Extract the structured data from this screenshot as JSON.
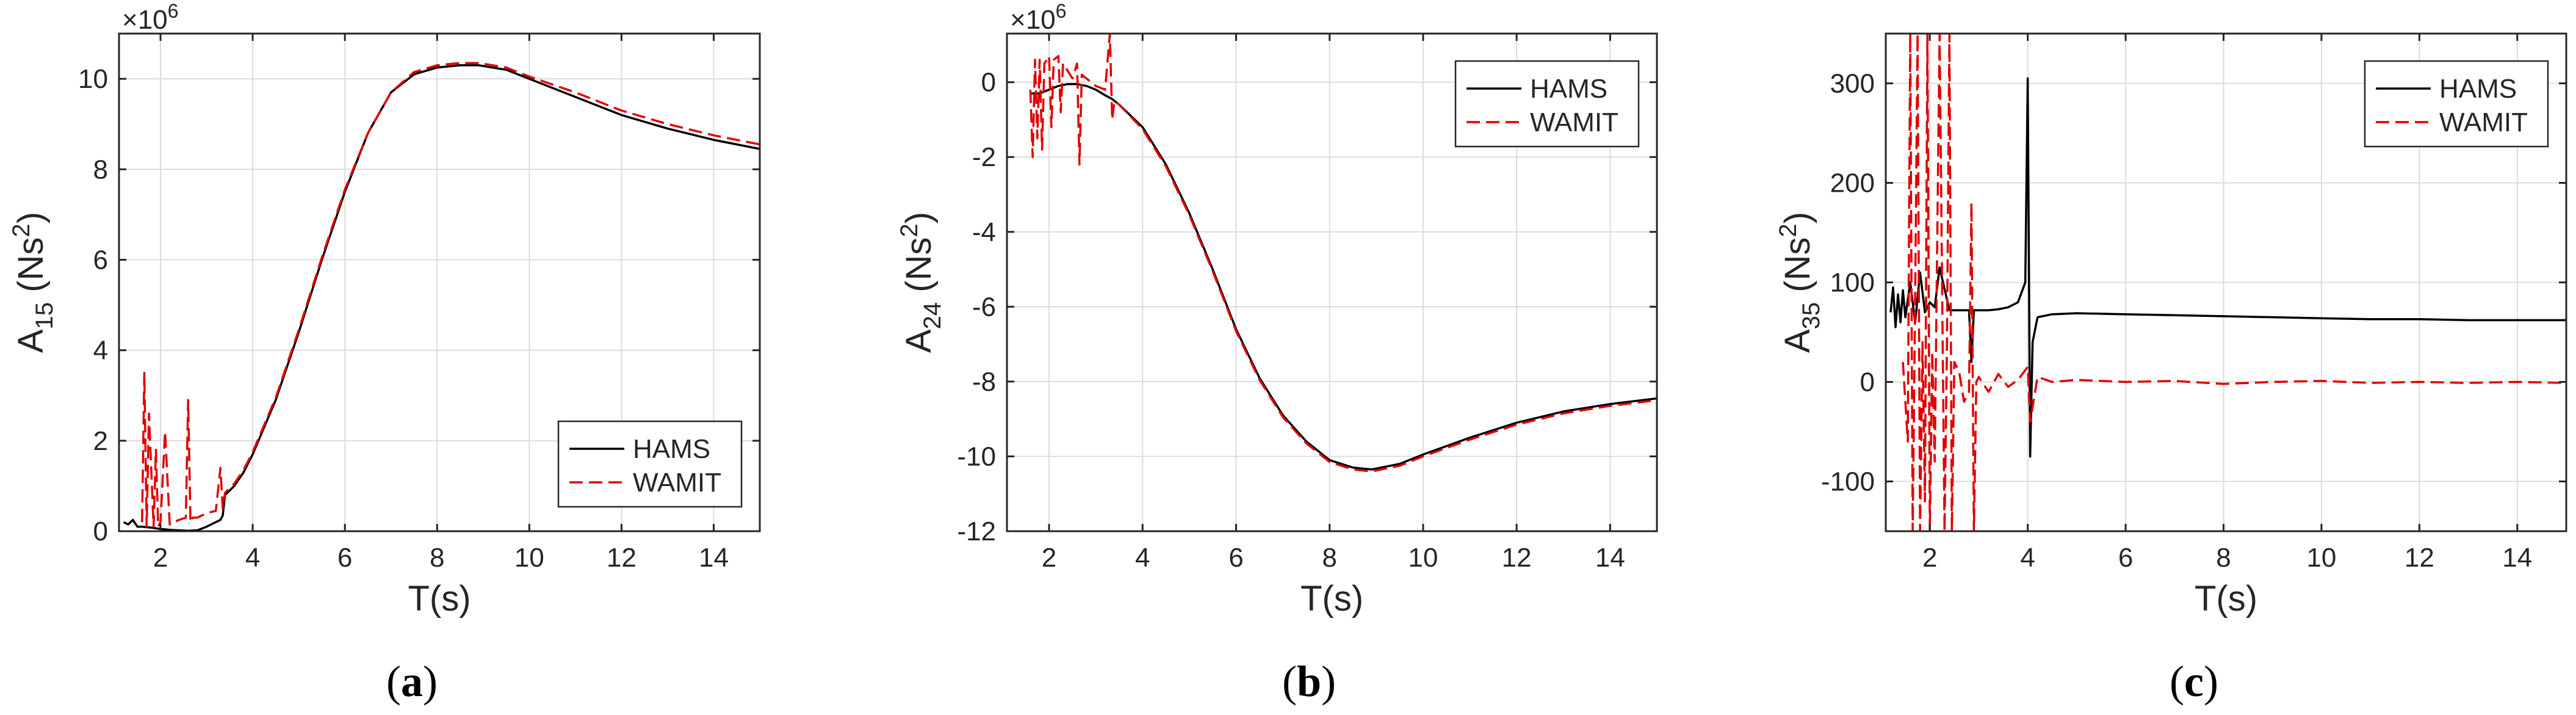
{
  "chart_data": [
    {
      "type": "line",
      "caption": "(a)",
      "ylabel_main": "A",
      "ylabel_sub": "15",
      "ylabel_unit": " (Ns",
      "ylabel_sup": "2",
      "ylabel_close": ")",
      "xlabel": "T(s)",
      "exponent_base": "×10",
      "exponent_power": "6",
      "xlim": [
        1.1,
        15
      ],
      "ylim": [
        0,
        11
      ],
      "xticks": [
        2,
        4,
        6,
        8,
        10,
        12,
        14
      ],
      "yticks": [
        0,
        2,
        4,
        6,
        8,
        10
      ],
      "xtick_labels": [
        "2",
        "4",
        "6",
        "8",
        "10",
        "12",
        "14"
      ],
      "ytick_labels": [
        "0",
        "2",
        "4",
        "6",
        "8",
        "10"
      ],
      "grid": true,
      "legend_position": "bottom-right",
      "series": [
        {
          "name": "HAMS",
          "color": "#000000",
          "dash": "solid",
          "x": [
            1.2,
            1.3,
            1.4,
            1.5,
            1.6,
            1.8,
            2.0,
            2.2,
            2.4,
            2.6,
            2.8,
            3.0,
            3.2,
            3.3,
            3.35,
            3.4,
            3.6,
            3.8,
            4.0,
            4.5,
            5.0,
            5.5,
            6.0,
            6.5,
            7.0,
            7.5,
            8.0,
            8.5,
            8.9,
            9.5,
            10.0,
            11.0,
            12.0,
            13.0,
            14.0,
            15.0
          ],
          "y": [
            0.2,
            0.15,
            0.25,
            0.1,
            0.1,
            0.08,
            0.05,
            0.03,
            0.02,
            0.01,
            0.02,
            0.1,
            0.2,
            0.25,
            0.35,
            0.8,
            1.0,
            1.3,
            1.7,
            2.9,
            4.4,
            6.0,
            7.5,
            8.8,
            9.7,
            10.1,
            10.25,
            10.3,
            10.3,
            10.2,
            10.0,
            9.6,
            9.2,
            8.9,
            8.65,
            8.45
          ]
        },
        {
          "name": "WAMIT",
          "color": "#e00000",
          "dash": "dashed",
          "x": [
            1.6,
            1.65,
            1.7,
            1.75,
            1.85,
            1.9,
            1.95,
            2.0,
            2.1,
            2.2,
            2.25,
            2.3,
            2.4,
            2.55,
            2.6,
            2.65,
            2.7,
            2.8,
            3.0,
            3.2,
            3.3,
            3.35,
            3.4,
            3.6,
            3.8,
            4.0,
            4.5,
            5.0,
            5.5,
            6.0,
            6.5,
            7.0,
            7.5,
            8.0,
            8.5,
            8.9,
            9.5,
            10.0,
            11.0,
            12.0,
            13.0,
            14.0,
            15.0
          ],
          "y": [
            0.2,
            3.5,
            0.1,
            2.6,
            0.1,
            1.8,
            0.1,
            0.2,
            2.2,
            0.15,
            0.2,
            0.2,
            0.25,
            0.3,
            2.9,
            0.2,
            0.3,
            0.3,
            0.4,
            0.45,
            1.4,
            0.5,
            0.85,
            1.05,
            1.35,
            1.75,
            2.95,
            4.45,
            6.05,
            7.55,
            8.8,
            9.7,
            10.15,
            10.3,
            10.35,
            10.35,
            10.25,
            10.05,
            9.7,
            9.3,
            9.0,
            8.75,
            8.55
          ]
        }
      ]
    },
    {
      "type": "line",
      "caption": "(b)",
      "ylabel_main": "A",
      "ylabel_sub": "24",
      "ylabel_unit": " (Ns",
      "ylabel_sup": "2",
      "ylabel_close": ")",
      "xlabel": "T(s)",
      "exponent_base": "×10",
      "exponent_power": "6",
      "xlim": [
        1.1,
        15
      ],
      "ylim": [
        -12,
        1.3
      ],
      "xticks": [
        2,
        4,
        6,
        8,
        10,
        12,
        14
      ],
      "yticks": [
        -12,
        -10,
        -8,
        -6,
        -4,
        -2,
        0
      ],
      "xtick_labels": [
        "2",
        "4",
        "6",
        "8",
        "10",
        "12",
        "14"
      ],
      "ytick_labels": [
        "-12",
        "-10",
        "-8",
        "-6",
        "-4",
        "-2",
        "0"
      ],
      "grid": true,
      "legend_position": "top-right",
      "series": [
        {
          "name": "HAMS",
          "color": "#000000",
          "dash": "solid",
          "x": [
            1.6,
            1.8,
            2.0,
            2.2,
            2.4,
            2.6,
            2.8,
            3.0,
            3.2,
            3.35,
            3.5,
            4.0,
            4.5,
            5.0,
            5.5,
            6.0,
            6.5,
            7.0,
            7.5,
            8.0,
            8.5,
            8.9,
            9.5,
            10.0,
            11.0,
            12.0,
            13.0,
            14.0,
            15.0
          ],
          "y": [
            -0.3,
            -0.3,
            -0.2,
            -0.1,
            -0.05,
            -0.05,
            -0.1,
            -0.2,
            -0.35,
            -0.45,
            -0.6,
            -1.2,
            -2.2,
            -3.5,
            -5.0,
            -6.6,
            -7.9,
            -8.9,
            -9.6,
            -10.1,
            -10.3,
            -10.35,
            -10.2,
            -9.95,
            -9.5,
            -9.1,
            -8.8,
            -8.6,
            -8.45
          ]
        },
        {
          "name": "WAMIT",
          "color": "#e00000",
          "dash": "dashed",
          "x": [
            1.6,
            1.65,
            1.7,
            1.75,
            1.8,
            1.85,
            1.9,
            2.0,
            2.05,
            2.1,
            2.2,
            2.25,
            2.3,
            2.5,
            2.6,
            2.65,
            2.7,
            3.0,
            3.2,
            3.3,
            3.35,
            3.4,
            3.5,
            4.0,
            4.5,
            5.0,
            5.5,
            6.0,
            6.5,
            7.0,
            7.5,
            8.0,
            8.5,
            8.9,
            9.5,
            10.0,
            11.0,
            12.0,
            13.0,
            14.0,
            15.0
          ],
          "y": [
            -0.2,
            -2.0,
            0.6,
            -1.5,
            0.6,
            -1.8,
            0.5,
            0.7,
            -1.2,
            0.6,
            0.7,
            -0.8,
            0.5,
            0.1,
            0.5,
            -2.2,
            0.2,
            -0.1,
            -0.2,
            1.3,
            -1.0,
            -0.5,
            -0.6,
            -1.25,
            -2.25,
            -3.55,
            -5.05,
            -6.65,
            -7.95,
            -8.95,
            -9.65,
            -10.15,
            -10.35,
            -10.4,
            -10.25,
            -10.0,
            -9.55,
            -9.15,
            -8.85,
            -8.65,
            -8.5
          ]
        }
      ]
    },
    {
      "type": "line",
      "caption": "(c)",
      "ylabel_main": "A",
      "ylabel_sub": "35",
      "ylabel_unit": " (Ns",
      "ylabel_sup": "2",
      "ylabel_close": ")",
      "xlabel": "T(s)",
      "exponent_base": "",
      "exponent_power": "",
      "xlim": [
        1.1,
        15
      ],
      "ylim": [
        -150,
        350
      ],
      "xticks": [
        2,
        4,
        6,
        8,
        10,
        12,
        14
      ],
      "yticks": [
        -100,
        0,
        100,
        200,
        300
      ],
      "xtick_labels": [
        "2",
        "4",
        "6",
        "8",
        "10",
        "12",
        "14"
      ],
      "ytick_labels": [
        "-100",
        "0",
        "100",
        "200",
        "300"
      ],
      "grid": true,
      "legend_position": "top-right",
      "series": [
        {
          "name": "HAMS",
          "color": "#000000",
          "dash": "solid",
          "x": [
            1.2,
            1.25,
            1.3,
            1.35,
            1.4,
            1.45,
            1.5,
            1.6,
            1.7,
            1.8,
            1.9,
            2.0,
            2.1,
            2.2,
            2.4,
            2.6,
            2.8,
            2.85,
            2.9,
            3.0,
            3.2,
            3.4,
            3.6,
            3.8,
            3.95,
            4.0,
            4.05,
            4.1,
            4.2,
            4.5,
            5.0,
            6.0,
            7.0,
            8.0,
            9.0,
            10.0,
            11.0,
            12.0,
            13.0,
            14.0,
            15.0
          ],
          "y": [
            70,
            95,
            55,
            88,
            60,
            92,
            65,
            100,
            60,
            110,
            70,
            80,
            75,
            115,
            72,
            72,
            72,
            20,
            72,
            72,
            72,
            73,
            75,
            80,
            100,
            305,
            -75,
            40,
            65,
            68,
            69,
            68,
            67,
            66,
            65,
            64,
            63,
            63,
            62,
            62,
            62
          ]
        },
        {
          "name": "WAMIT",
          "color": "#e00000",
          "dash": "dashed",
          "x": [
            1.45,
            1.55,
            1.6,
            1.65,
            1.7,
            1.75,
            1.8,
            1.85,
            1.9,
            1.95,
            2.0,
            2.05,
            2.1,
            2.2,
            2.3,
            2.35,
            2.4,
            2.45,
            2.5,
            2.6,
            2.7,
            2.8,
            2.85,
            2.9,
            2.95,
            3.0,
            3.2,
            3.4,
            3.6,
            3.8,
            4.0,
            4.05,
            4.2,
            4.5,
            5.0,
            6.0,
            7.0,
            8.0,
            9.0,
            10.0,
            11.0,
            12.0,
            13.0,
            14.0,
            15.0
          ],
          "y": [
            20,
            -60,
            350,
            -150,
            80,
            350,
            -150,
            40,
            -120,
            350,
            -150,
            30,
            -80,
            350,
            -150,
            40,
            350,
            -150,
            20,
            10,
            -20,
            -10,
            180,
            -150,
            0,
            5,
            -10,
            8,
            -5,
            2,
            15,
            -40,
            5,
            0,
            2,
            0,
            1,
            -2,
            0,
            1,
            -1,
            0,
            -1,
            0,
            -1
          ]
        }
      ]
    }
  ]
}
